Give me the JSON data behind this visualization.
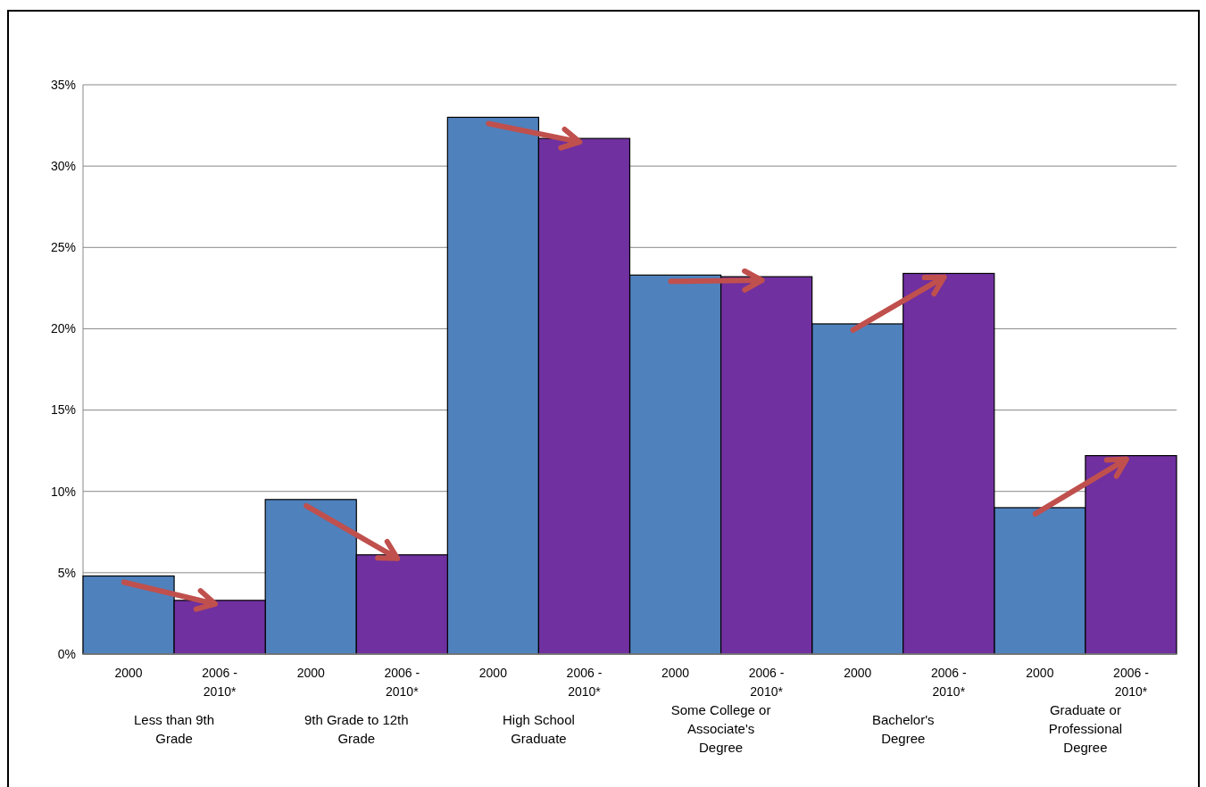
{
  "chart_data": {
    "type": "bar",
    "categories": [
      "Less than 9th Grade",
      "9th Grade to 12th Grade",
      "High School Graduate",
      "Some College or Associate's Degree",
      "Bachelor's Degree",
      "Graduate or Professional Degree"
    ],
    "series": [
      {
        "name": "2000",
        "color": "#4f81bd",
        "values": [
          4.8,
          9.5,
          33.0,
          23.3,
          20.3,
          9.0
        ]
      },
      {
        "name": "2006 - 2010*",
        "color": "#7030a0",
        "values": [
          3.3,
          6.1,
          31.7,
          23.2,
          23.4,
          12.2
        ]
      }
    ],
    "ylim": [
      0,
      35
    ],
    "yticks": [
      {
        "value": 0,
        "label": "0%"
      },
      {
        "value": 5,
        "label": "5%"
      },
      {
        "value": 10,
        "label": "10%"
      },
      {
        "value": 15,
        "label": "15%"
      },
      {
        "value": 20,
        "label": "20%"
      },
      {
        "value": 25,
        "label": "25%"
      },
      {
        "value": 30,
        "label": "30%"
      },
      {
        "value": 35,
        "label": "35%"
      }
    ],
    "grid": "y"
  }
}
